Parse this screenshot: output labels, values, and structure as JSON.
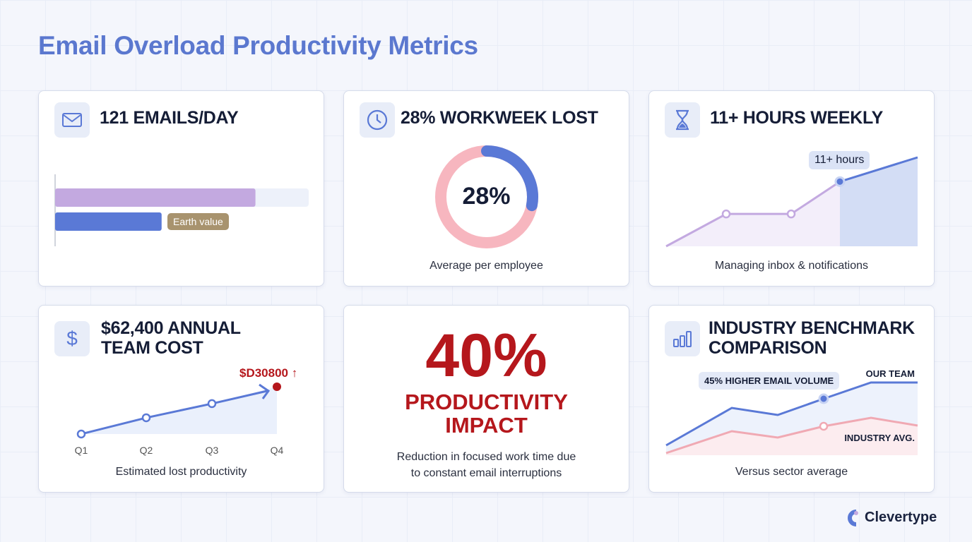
{
  "title": "Email Overload Productivity Metrics",
  "cards": {
    "emails": {
      "heading": "121 EMAILS/DAY",
      "icon": "envelope-icon",
      "tooltip": "Earth value"
    },
    "workweek": {
      "heading": "28% WORKWEEK LOST",
      "icon": "clock-icon",
      "center": "28%",
      "caption": "Average per employee"
    },
    "hours": {
      "heading": "11+ HOURS WEEKLY",
      "icon": "hourglass-icon",
      "tooltip": "11+ hours",
      "caption": "Managing inbox & notifications"
    },
    "cost": {
      "heading_line1": "$62,400 ANNUAL",
      "heading_line2": "TEAM COST",
      "icon": "dollar-icon",
      "callout": "$D30800 ↑",
      "caption": "Estimated lost productivity"
    },
    "impact": {
      "value": "40%",
      "line1": "PRODUCTIVITY",
      "line2": "IMPACT",
      "caption_line1": "Reduction in focused work time due",
      "caption_line2": "to constant email interruptions"
    },
    "benchmark": {
      "heading_line1": "INDUSTRY BENCHMARK",
      "heading_line2": "COMPARISON",
      "icon": "bar-chart-icon",
      "tooltip": "45% HIGHER EMAIL VOLUME",
      "caption": "Versus sector average"
    }
  },
  "brand": "Clevertype",
  "colors": {
    "title": "#5b78cf",
    "blue": "#5a79d6",
    "purple": "#c3a9e0",
    "pink": "#f0a9b3",
    "red": "#b5171c",
    "tooltip_tan": "#a8936e"
  },
  "chart_data": [
    {
      "type": "bar",
      "orientation": "horizontal",
      "values": [
        0.79,
        0.42
      ],
      "colors": [
        "#c3a9e0",
        "#5a79d6"
      ],
      "annotation": "Earth value"
    },
    {
      "type": "pie",
      "style": "donut",
      "values": [
        28,
        72
      ],
      "label": "28%"
    },
    {
      "type": "area",
      "values": [
        0,
        4,
        4,
        8,
        11
      ],
      "highlight_index": 3,
      "annotation": "11+ hours"
    },
    {
      "type": "line",
      "categories": [
        "Q1",
        "Q2",
        "Q3",
        "Q4"
      ],
      "values": [
        0,
        10600,
        19800,
        30800
      ],
      "annotation": "$D30800 ↑"
    },
    {
      "type": "line",
      "series": [
        {
          "name": "OUR TEAM",
          "values": [
            14,
            67,
            57,
            80,
            103,
            103
          ]
        },
        {
          "name": "INDUSTRY AVG.",
          "values": [
            3,
            34,
            25,
            41,
            53,
            42
          ]
        }
      ],
      "highlight_index": 3,
      "annotation": "45% HIGHER EMAIL VOLUME"
    }
  ]
}
